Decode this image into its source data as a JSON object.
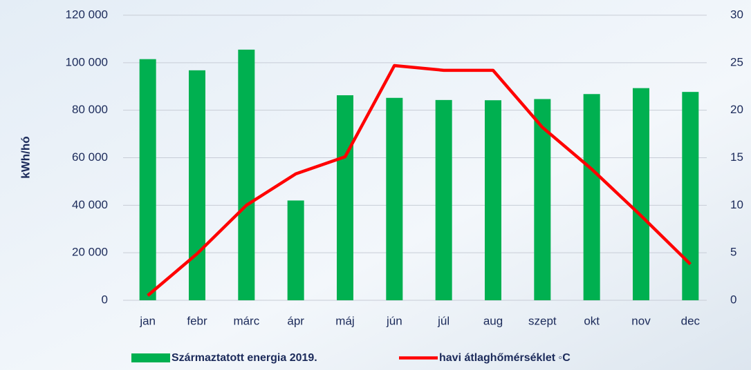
{
  "chart_data": {
    "type": "bar_line",
    "y_axis_label": "kWh/hó",
    "categories": [
      "jan",
      "febr",
      "márc",
      "ápr",
      "máj",
      "jún",
      "júl",
      "aug",
      "szept",
      "okt",
      "nov",
      "dec"
    ],
    "series": [
      {
        "name": "Származtatott energia 2019.",
        "type": "bar",
        "color": "#00b050",
        "values": [
          101500,
          96800,
          105500,
          42000,
          86300,
          85200,
          84300,
          84200,
          84700,
          86800,
          89300,
          87700
        ]
      },
      {
        "name": "havi átlaghőmérséklet ◦C",
        "type": "line",
        "axis": "y2",
        "color": "#ff0000",
        "values": [
          0.5,
          4.9,
          10.0,
          13.3,
          15.1,
          24.7,
          24.2,
          24.2,
          18.2,
          13.8,
          8.9,
          3.8
        ]
      }
    ],
    "ylim": [
      0,
      120000
    ],
    "yticks": [
      0,
      {
        "value": 20000,
        "label": "20 000"
      },
      {
        "value": 40000,
        "label": "40 000"
      },
      {
        "value": 60000,
        "label": "60 000"
      },
      {
        "value": 80000,
        "label": "80 000"
      },
      {
        "value": 100000,
        "label": "100 000"
      },
      {
        "value": 120000,
        "label": "120 000"
      }
    ],
    "y2lim": [
      0,
      30
    ],
    "y2ticks": [
      0,
      5,
      10,
      15,
      20,
      25,
      30
    ],
    "grid": true,
    "legend": "bottom"
  }
}
